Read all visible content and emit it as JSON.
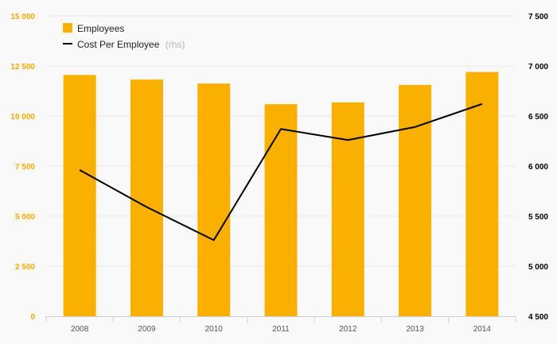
{
  "colors": {
    "bar": "#f9b000",
    "line": "#000000",
    "left_axis_text": "#f5a800",
    "right_axis_text": "#000000",
    "grid": "#e6e6e6",
    "background": "#f9f9f9"
  },
  "chart_data": {
    "type": "bar",
    "categories": [
      "2008",
      "2009",
      "2010",
      "2011",
      "2012",
      "2013",
      "2014"
    ],
    "series": [
      {
        "name": "Employees",
        "type": "bar",
        "axis": "left",
        "values": [
          12050,
          11820,
          11620,
          10590,
          10680,
          11550,
          12200
        ]
      },
      {
        "name": "Cost Per Employee",
        "name_suffix": "(rhs)",
        "type": "line",
        "axis": "right",
        "values": [
          5960,
          5590,
          5260,
          6370,
          6260,
          6390,
          6620
        ]
      }
    ],
    "y_left": {
      "ylim": [
        0,
        15000
      ],
      "ticks": [
        0,
        2500,
        5000,
        7500,
        10000,
        12500,
        15000
      ],
      "tick_labels": [
        "0",
        "2 500",
        "5 000",
        "7 500",
        "10 000",
        "12 500",
        "15 000"
      ]
    },
    "y_right": {
      "ylim": [
        4500,
        7500
      ],
      "ticks": [
        4500,
        5000,
        5500,
        6000,
        6500,
        7000,
        7500
      ],
      "tick_labels": [
        "4 500",
        "5 000",
        "5 500",
        "6 000",
        "6 500",
        "7 000",
        "7 500"
      ]
    },
    "grid": true,
    "legend_position": "top-left",
    "title": "",
    "xlabel": "",
    "ylabel": ""
  }
}
